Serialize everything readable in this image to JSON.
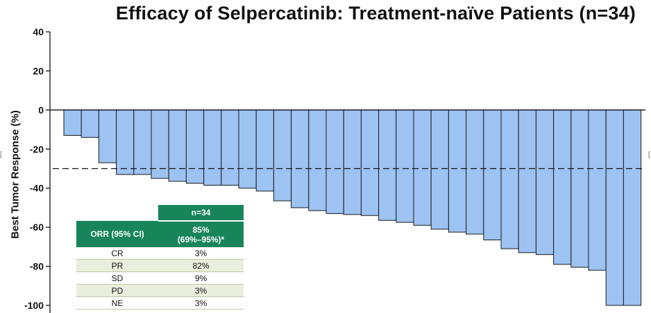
{
  "chart_data": {
    "type": "bar",
    "title": "Efficacy of Selpercatinib: Treatment-naïve Patients (n=34)",
    "ylabel": "Best Tumor Response (%)",
    "xlabel": "",
    "ylim": [
      -100,
      40
    ],
    "yticks": [
      40,
      20,
      0,
      -20,
      -40,
      -60,
      -80,
      -100
    ],
    "ytick_labels": [
      "40",
      "20",
      "0",
      "-20",
      "-40",
      "-60",
      "-80",
      "-100"
    ],
    "reference_line": -30,
    "bar_color": "#9dc3f2",
    "bar_edge_color": "#1a1a1a",
    "values": [
      -13,
      -14,
      -27,
      -33,
      -33,
      -35,
      -36.5,
      -37.5,
      -38.5,
      -38.5,
      -40,
      -41.5,
      -46.5,
      -50,
      -51.5,
      -53,
      -53.5,
      -54,
      -56.5,
      -57.5,
      -59,
      -61,
      -62.5,
      -63.5,
      -66.5,
      -71,
      -73,
      -74,
      -79,
      -80.5,
      -82,
      -100,
      -100
    ]
  },
  "table": {
    "n_header": "n=34",
    "orr_label": "ORR (95% CI)",
    "orr_value_line1": "85%",
    "orr_value_line2": "(69%–95%)*",
    "rows": [
      {
        "label": "CR",
        "value": "3%"
      },
      {
        "label": "PR",
        "value": "82%"
      },
      {
        "label": "SD",
        "value": "9%"
      },
      {
        "label": "PD",
        "value": "3%"
      },
      {
        "label": "NE",
        "value": "3%"
      }
    ],
    "header_color": "#17845a"
  },
  "side_marks": {
    "left": "[",
    "right": "["
  }
}
